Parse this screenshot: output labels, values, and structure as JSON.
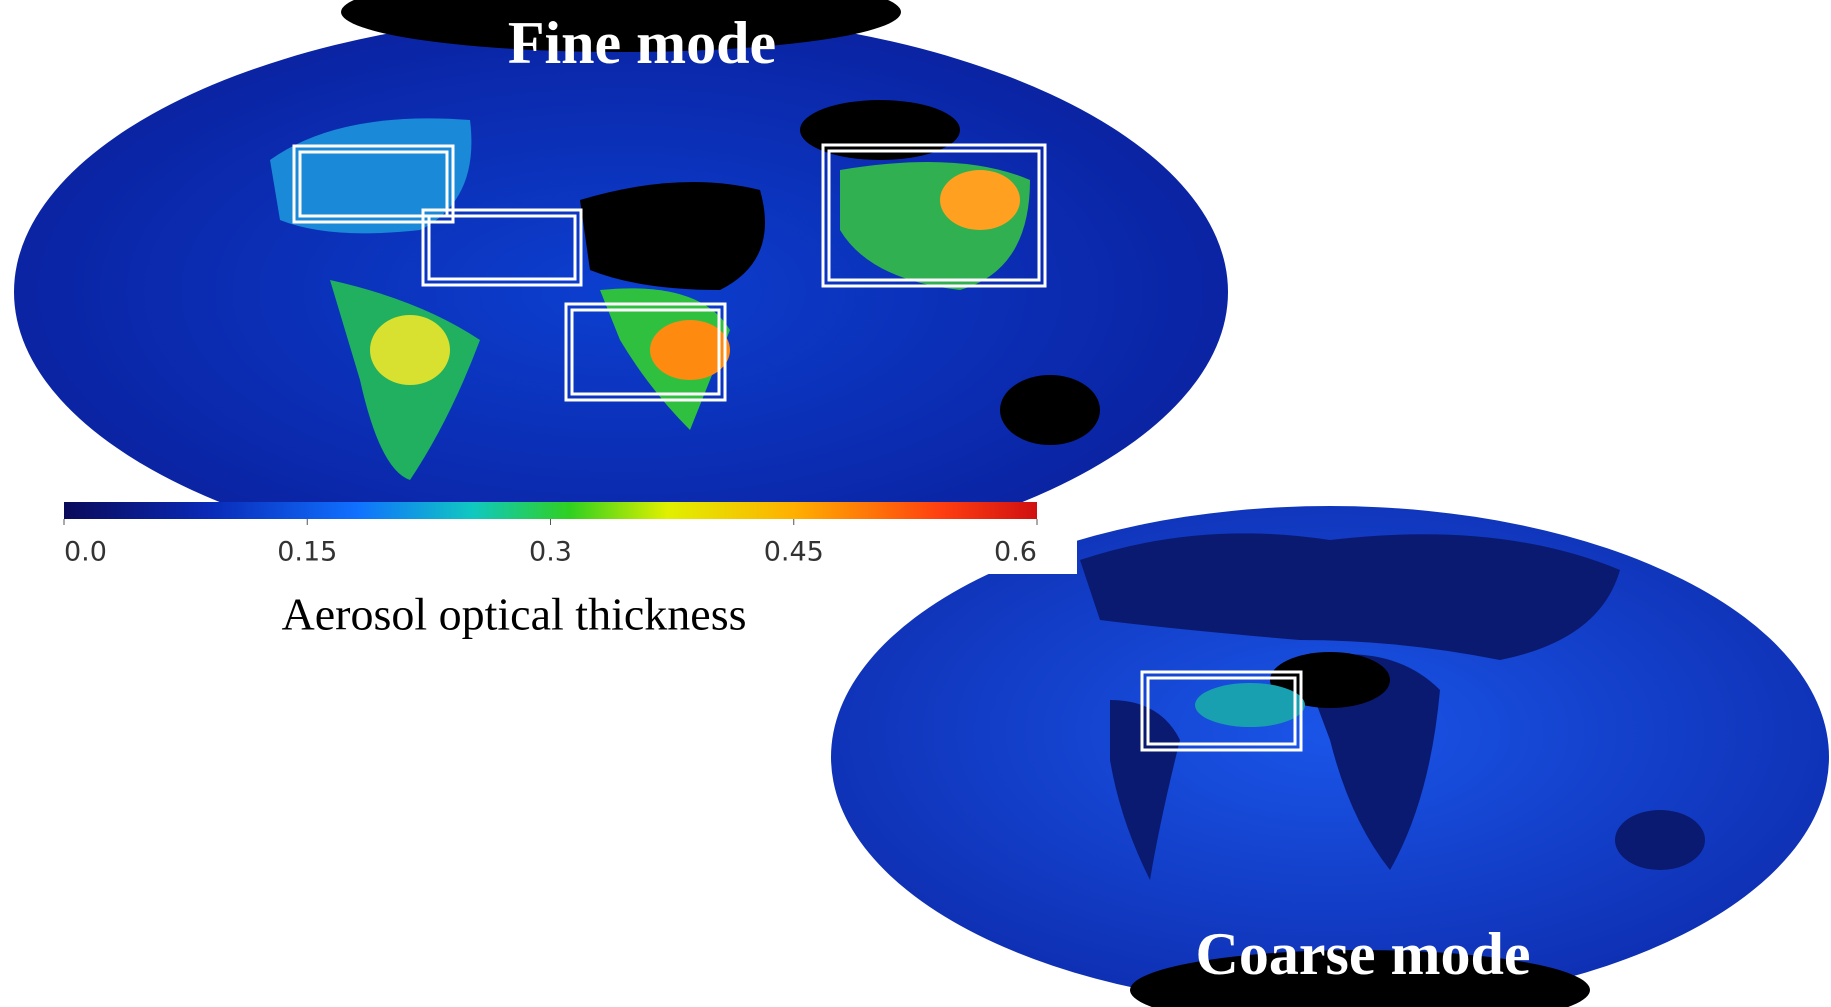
{
  "maps": [
    {
      "title": "Fine mode"
    },
    {
      "title": "Coarse mode"
    }
  ],
  "colorbar": {
    "label": "Aerosol optical thickness",
    "range": [
      0,
      0.6
    ],
    "ticks": [
      {
        "value": 0,
        "label": "0.0"
      },
      0.15,
      0.3,
      0.45,
      0.6
    ]
  }
}
